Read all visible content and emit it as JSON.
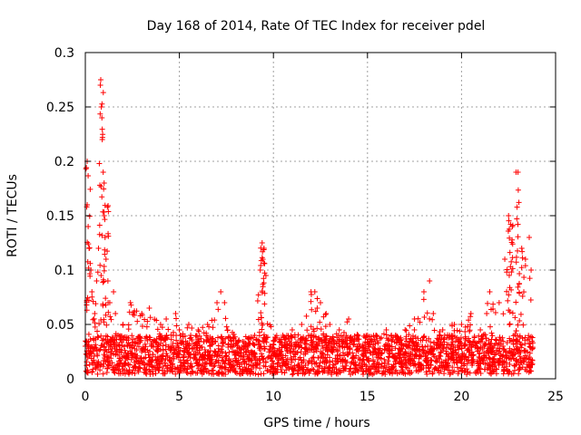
{
  "chart_data": {
    "type": "scatter",
    "title": "Day 168 of 2014, Rate Of TEC Index for receiver pdel",
    "xlabel": "GPS time / hours",
    "ylabel": "ROTI / TECUs",
    "xlim": [
      0,
      25
    ],
    "ylim": [
      0,
      0.3
    ],
    "xticks": [
      0,
      5,
      10,
      15,
      20,
      25
    ],
    "yticks": [
      0,
      0.05,
      0.1,
      0.15,
      0.2,
      0.25,
      0.3
    ],
    "xtick_labels": [
      "0",
      "5",
      "10",
      "15",
      "20",
      "25"
    ],
    "ytick_labels": [
      "0",
      "0.05",
      "0.1",
      "0.15",
      "0.2",
      "0.25",
      "0.3"
    ],
    "grid": true,
    "marker": "+",
    "color": "#ff0000",
    "series": [
      {
        "name": "ROTI",
        "x": [
          0.0,
          0.1,
          0.1,
          0.15,
          0.2,
          0.3,
          0.35,
          0.5,
          0.6,
          0.7,
          0.8,
          0.82,
          0.85,
          0.88,
          0.9,
          0.95,
          1.0,
          1.0,
          1.05,
          1.1,
          1.2,
          1.3,
          1.5,
          1.6,
          2.0,
          2.4,
          3.0,
          3.4,
          4.0,
          4.3,
          4.8,
          5.0,
          5.5,
          6.0,
          6.5,
          7.0,
          7.2,
          7.4,
          8.0,
          8.5,
          9.0,
          9.3,
          9.4,
          9.5,
          9.6,
          10.0,
          10.5,
          11.0,
          11.5,
          12.0,
          12.2,
          12.5,
          12.8,
          13.0,
          13.5,
          14.0,
          14.5,
          15.0,
          15.5,
          16.0,
          16.5,
          17.0,
          17.5,
          18.0,
          18.3,
          18.5,
          19.0,
          19.5,
          20.0,
          20.5,
          21.0,
          21.5,
          22.0,
          22.3,
          22.5,
          22.7,
          22.9,
          23.0,
          23.2,
          23.4,
          23.6,
          23.7
        ],
        "y": [
          0.03,
          0.2,
          0.16,
          0.14,
          0.12,
          0.1,
          0.08,
          0.06,
          0.09,
          0.12,
          0.27,
          0.275,
          0.25,
          0.24,
          0.22,
          0.19,
          0.18,
          0.15,
          0.13,
          0.11,
          0.09,
          0.07,
          0.08,
          0.06,
          0.05,
          0.07,
          0.06,
          0.065,
          0.05,
          0.055,
          0.06,
          0.045,
          0.05,
          0.045,
          0.05,
          0.07,
          0.08,
          0.07,
          0.035,
          0.03,
          0.04,
          0.1,
          0.125,
          0.12,
          0.095,
          0.035,
          0.04,
          0.045,
          0.05,
          0.08,
          0.08,
          0.07,
          0.06,
          0.05,
          0.045,
          0.055,
          0.04,
          0.04,
          0.035,
          0.045,
          0.04,
          0.045,
          0.055,
          0.08,
          0.09,
          0.06,
          0.045,
          0.05,
          0.05,
          0.06,
          0.045,
          0.08,
          0.07,
          0.11,
          0.15,
          0.14,
          0.19,
          0.19,
          0.12,
          0.11,
          0.13,
          0.1
        ],
        "density_band": {
          "x_start": 0,
          "x_end": 23.8,
          "y_min": 0.004,
          "typical_max": 0.04
        }
      }
    ]
  }
}
